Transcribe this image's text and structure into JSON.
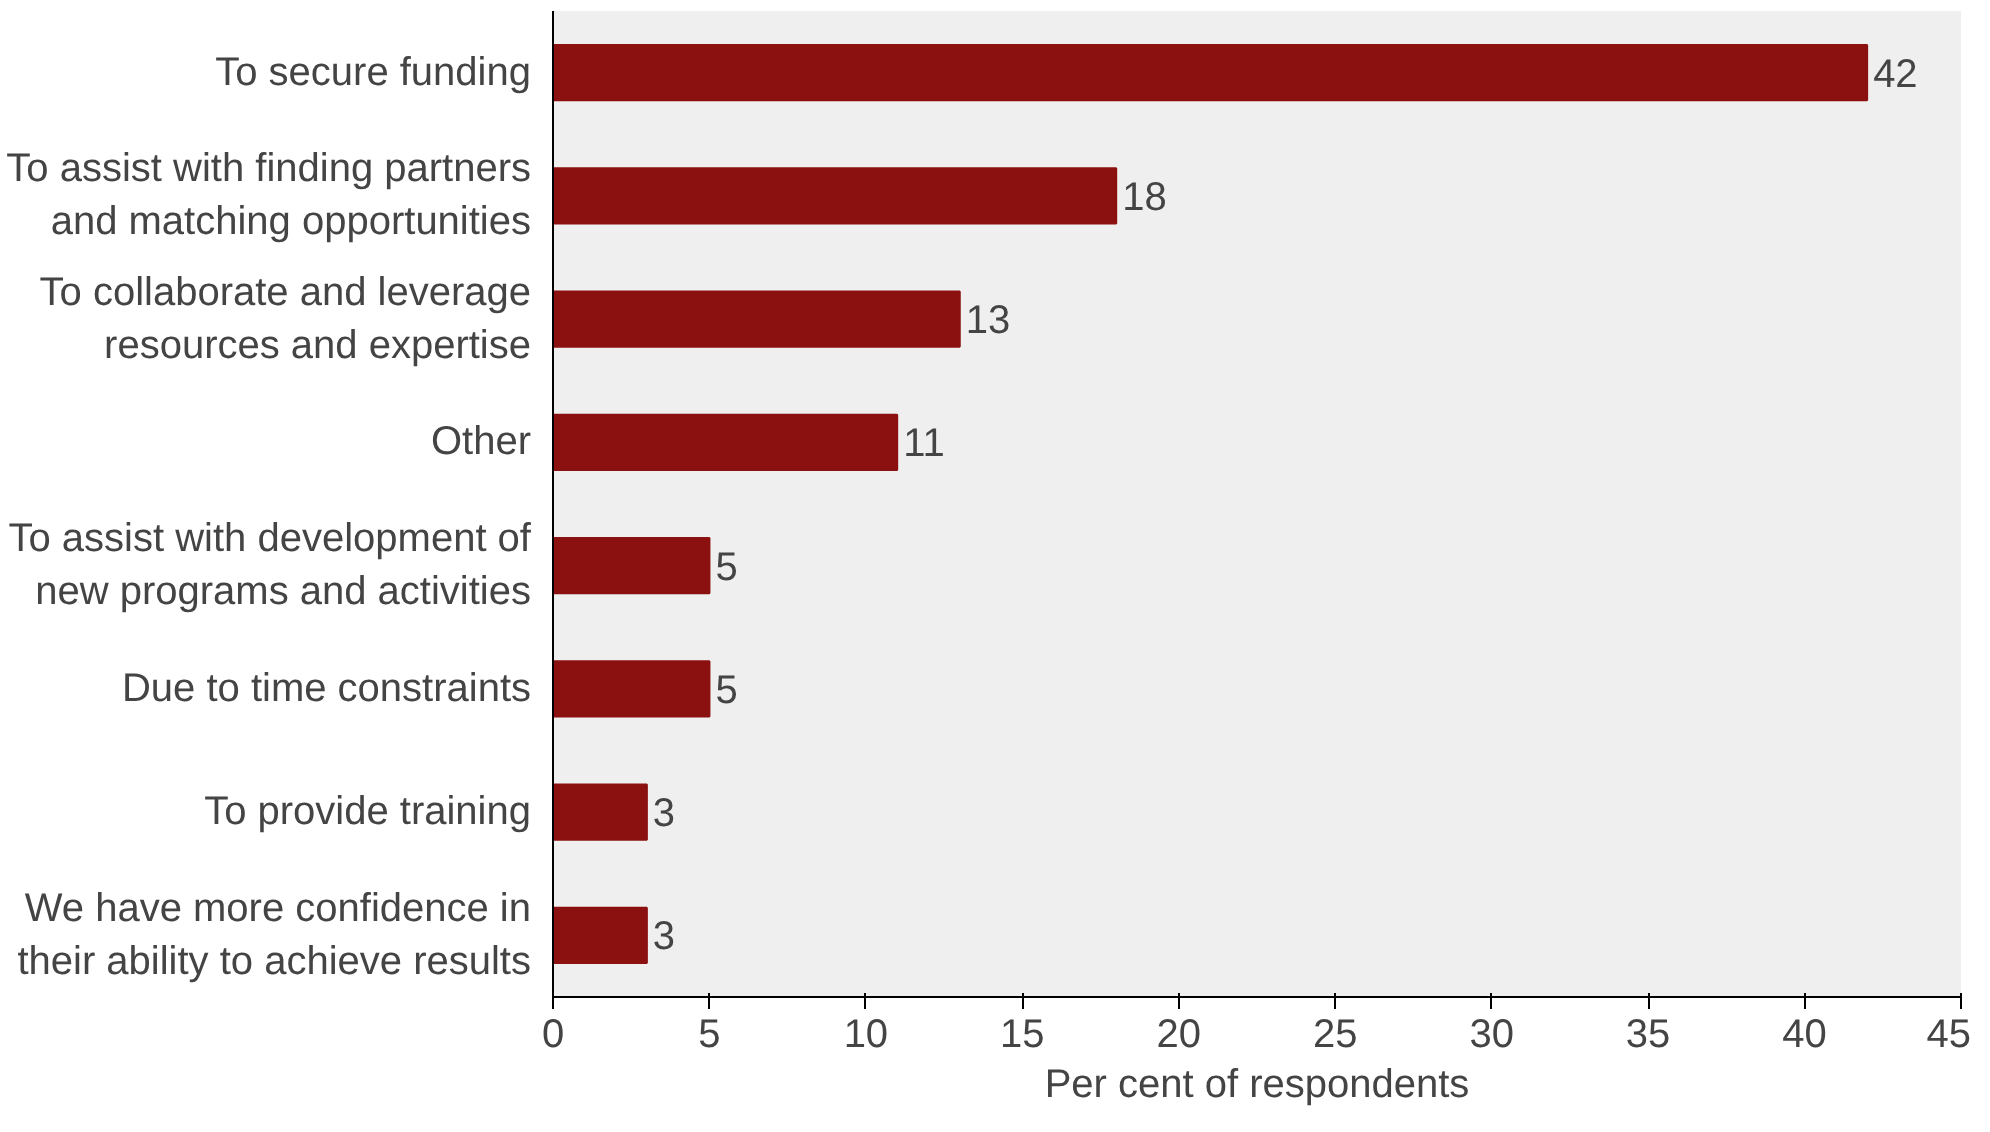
{
  "chart_data": {
    "type": "bar",
    "orientation": "horizontal",
    "xlabel": "Per cent of respondents",
    "categories": [
      "To secure funding",
      "To assist with finding partners\nand matching opportunities",
      "To collaborate and leverage\nresources and expertise",
      "Other",
      "To assist with development of\nnew programs and activities",
      "Due to time constraints",
      "To provide training",
      "We have more confidence in\ntheir ability to achieve results"
    ],
    "values": [
      42,
      18,
      13,
      11,
      5,
      5,
      3,
      3
    ],
    "color": "#8b1010",
    "xlim": [
      0,
      45
    ],
    "xticks": [
      0,
      5,
      10,
      15,
      20,
      25,
      30,
      35,
      40,
      45
    ],
    "data_labels": true,
    "grid": false
  }
}
